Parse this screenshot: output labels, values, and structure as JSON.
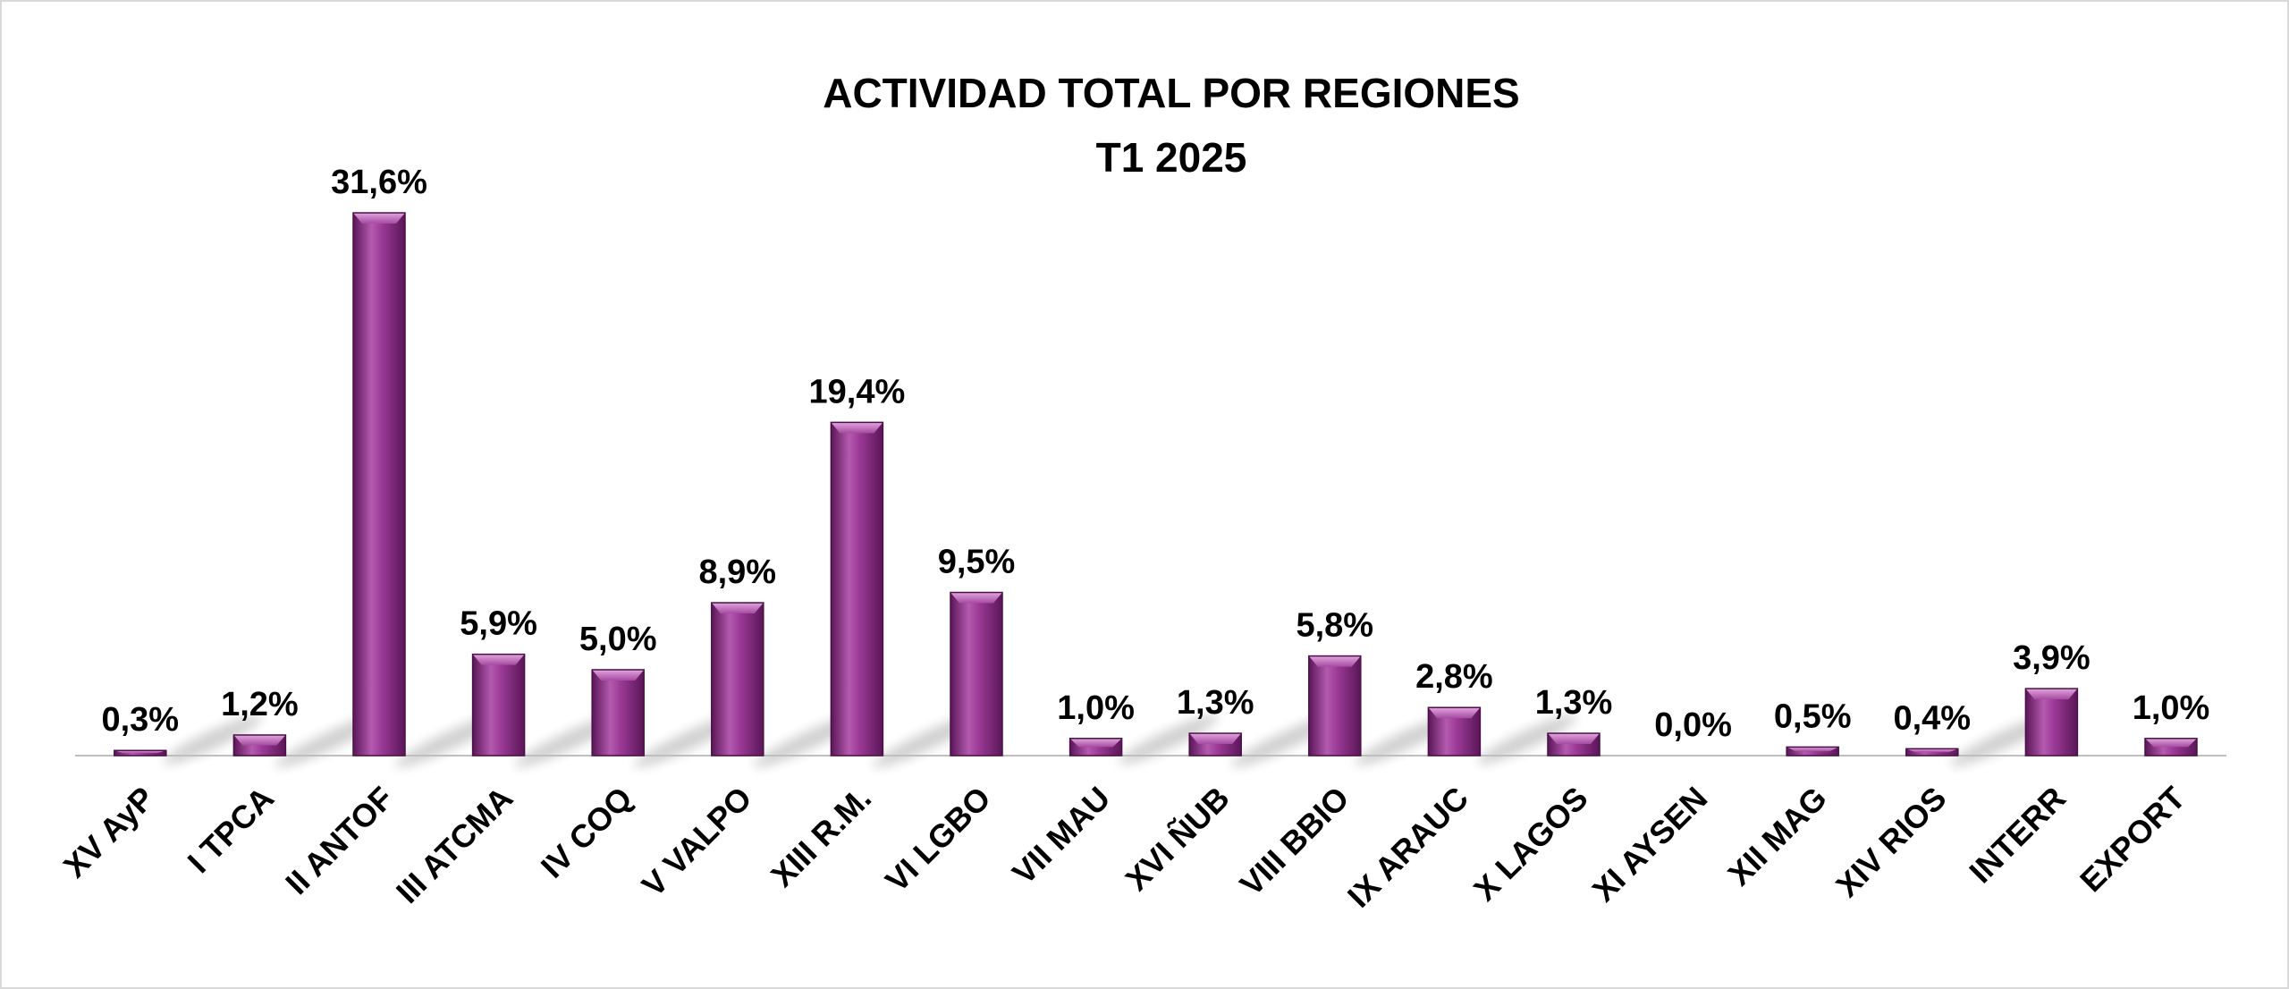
{
  "chart_data": {
    "type": "bar",
    "title": "ACTIVIDAD TOTAL POR REGIONES",
    "subtitle": "T1 2025",
    "xlabel": "",
    "ylabel": "",
    "ylim": [
      0,
      31.6
    ],
    "grid": false,
    "legend": "none",
    "bar_color": "#8e2a8a",
    "bar_highlight": "#c779c3",
    "bar_dark": "#5a1657",
    "categories": [
      "XV AyP",
      "I TPCA",
      "II ANTOF",
      "III ATCMA",
      "IV COQ",
      "V VALPO",
      "XIII R.M.",
      "VI LGBO",
      "VII MAU",
      "XVI ÑUB",
      "VIII BBIO",
      "IX ARAUC",
      "X LAGOS",
      "XI AYSEN",
      "XII MAG",
      "XIV RIOS",
      "INTERR",
      "EXPORT"
    ],
    "values": [
      0.3,
      1.2,
      31.6,
      5.9,
      5.0,
      8.9,
      19.4,
      9.5,
      1.0,
      1.3,
      5.8,
      2.8,
      1.3,
      0.0,
      0.5,
      0.4,
      3.9,
      1.0
    ],
    "value_labels": [
      "0,3%",
      "1,2%",
      "31,6%",
      "5,9%",
      "5,0%",
      "8,9%",
      "19,4%",
      "9,5%",
      "1,0%",
      "1,3%",
      "5,8%",
      "2,8%",
      "1,3%",
      "0,0%",
      "0,5%",
      "0,4%",
      "3,9%",
      "1,0%"
    ]
  }
}
